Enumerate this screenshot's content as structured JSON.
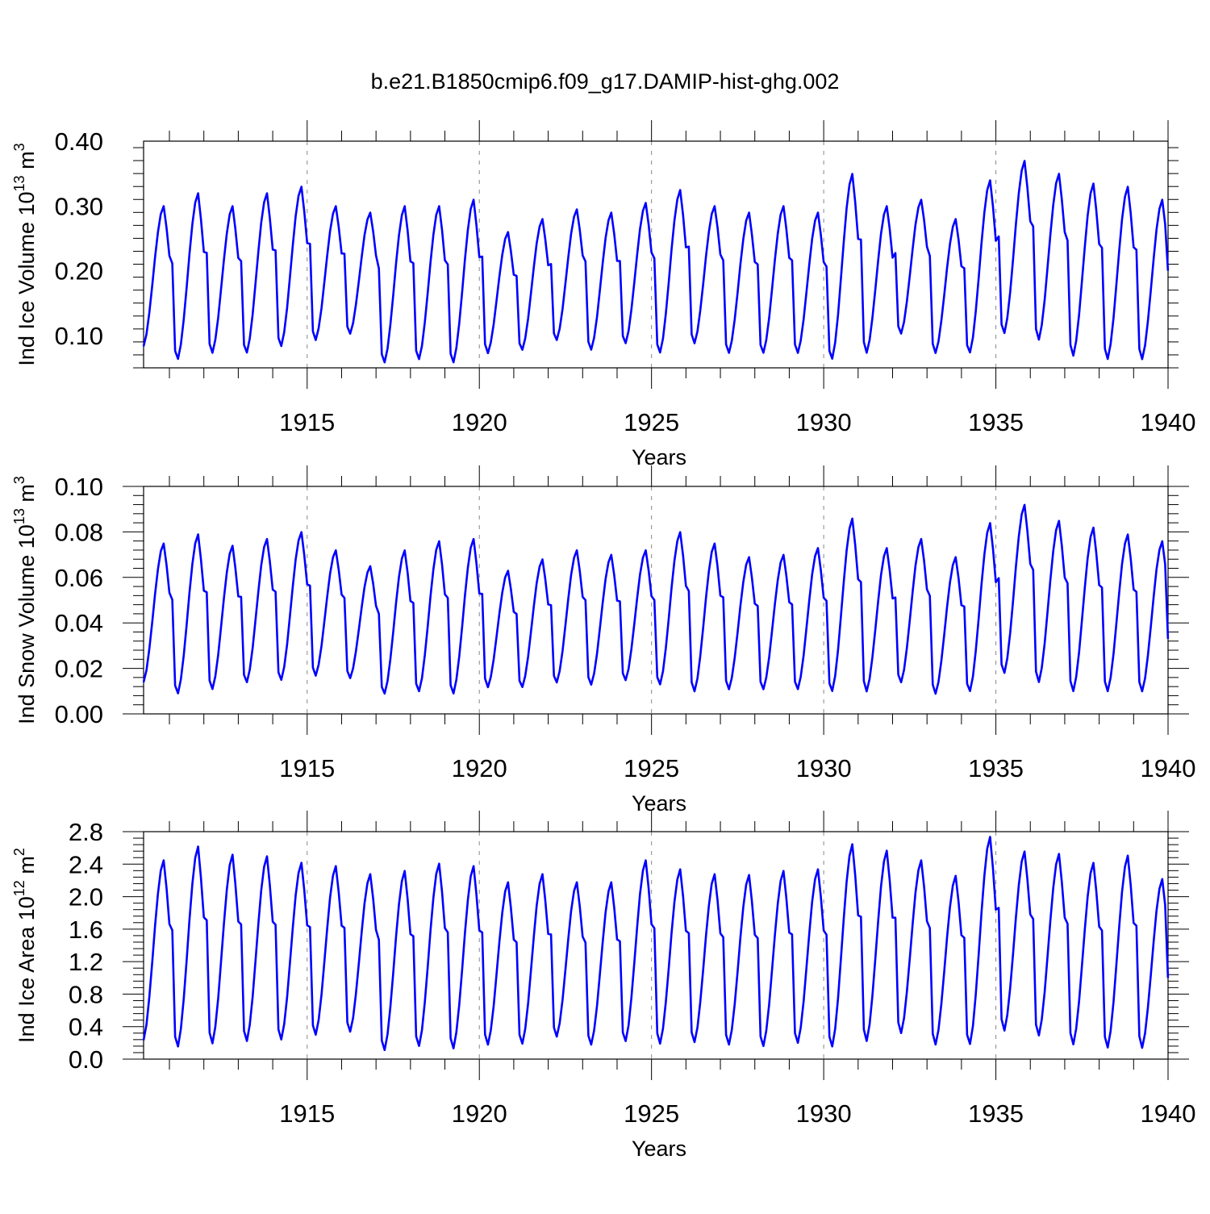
{
  "title": "b.e21.B1850cmip6.f09_g17.DAMIP-hist-ghg.002",
  "line_color": "#0000ff",
  "chart_data": [
    {
      "type": "line",
      "id": "ice-volume",
      "ylabel_main": "Ind Ice Volume 10",
      "ylabel_exp": "13",
      "ylabel_unit": " m",
      "ylabel_unit_exp": "3",
      "xlabel": "Years",
      "xlim": [
        1910.25,
        1940.0
      ],
      "ylim": [
        0.05,
        0.4
      ],
      "yticks": [
        0.1,
        0.2,
        0.3,
        0.4
      ],
      "ytick_labels": [
        "0.10",
        "0.20",
        "0.30",
        "0.40"
      ],
      "xticks": [
        1915,
        1920,
        1925,
        1930,
        1935,
        1940
      ],
      "xtick_labels": [
        "1915",
        "1920",
        "1925",
        "1930",
        "1935",
        "1940"
      ],
      "series": [
        {
          "name": "Ind Ice Volume",
          "start": 1910.25,
          "step": 0.08333,
          "min_values": [
            0.08,
            0.06,
            0.07,
            0.07,
            0.08,
            0.09,
            0.1,
            0.055,
            0.06,
            0.055,
            0.07,
            0.075,
            0.09,
            0.075,
            0.085,
            0.07,
            0.085,
            0.07,
            0.07,
            0.07,
            0.06,
            0.07,
            0.1,
            0.07,
            0.07,
            0.1,
            0.09,
            0.065,
            0.06
          ],
          "max_values": [
            0.3,
            0.32,
            0.3,
            0.32,
            0.33,
            0.3,
            0.29,
            0.3,
            0.3,
            0.31,
            0.26,
            0.28,
            0.295,
            0.29,
            0.305,
            0.325,
            0.3,
            0.29,
            0.3,
            0.29,
            0.35,
            0.3,
            0.31,
            0.28,
            0.34,
            0.37,
            0.35,
            0.335,
            0.33
          ],
          "last_max": 0.31,
          "end_value": 0.2
        }
      ]
    },
    {
      "type": "line",
      "id": "snow-volume",
      "ylabel_main": "Ind Snow Volume 10",
      "ylabel_exp": "13",
      "ylabel_unit": " m",
      "ylabel_unit_exp": "3",
      "xlabel": "Years",
      "xlim": [
        1910.25,
        1940.0
      ],
      "ylim": [
        0.0,
        0.1
      ],
      "yticks": [
        0.0,
        0.02,
        0.04,
        0.06,
        0.08,
        0.1
      ],
      "ytick_labels": [
        "0.00",
        "0.02",
        "0.04",
        "0.06",
        "0.08",
        "0.10"
      ],
      "xticks": [
        1915,
        1920,
        1925,
        1930,
        1935,
        1940
      ],
      "xtick_labels": [
        "1915",
        "1920",
        "1925",
        "1930",
        "1935",
        "1940"
      ],
      "series": [
        {
          "name": "Ind Snow Volume",
          "start": 1910.25,
          "step": 0.08333,
          "min_values": [
            0.013,
            0.008,
            0.01,
            0.013,
            0.014,
            0.016,
            0.015,
            0.008,
            0.009,
            0.008,
            0.011,
            0.011,
            0.013,
            0.012,
            0.014,
            0.012,
            0.009,
            0.01,
            0.01,
            0.01,
            0.009,
            0.009,
            0.013,
            0.008,
            0.009,
            0.017,
            0.013,
            0.009,
            0.009
          ],
          "max_values": [
            0.075,
            0.079,
            0.074,
            0.077,
            0.08,
            0.072,
            0.065,
            0.072,
            0.076,
            0.077,
            0.063,
            0.068,
            0.072,
            0.07,
            0.072,
            0.08,
            0.075,
            0.069,
            0.07,
            0.073,
            0.086,
            0.073,
            0.077,
            0.069,
            0.084,
            0.092,
            0.085,
            0.082,
            0.079
          ],
          "last_max": 0.076,
          "end_value": 0.033
        }
      ]
    },
    {
      "type": "line",
      "id": "ice-area",
      "ylabel_main": "Ind Ice Area 10",
      "ylabel_exp": "12",
      "ylabel_unit": " m",
      "ylabel_unit_exp": "2",
      "xlabel": "Years",
      "xlim": [
        1910.25,
        1940.0
      ],
      "ylim": [
        0.0,
        2.8
      ],
      "yticks": [
        0.0,
        0.4,
        0.8,
        1.2,
        1.6,
        2.0,
        2.4,
        2.8
      ],
      "ytick_labels": [
        "0.0",
        "0.4",
        "0.8",
        "1.2",
        "1.6",
        "2.0",
        "2.4",
        "2.8"
      ],
      "xticks": [
        1915,
        1920,
        1925,
        1930,
        1935,
        1940
      ],
      "xtick_labels": [
        "1915",
        "1920",
        "1925",
        "1930",
        "1935",
        "1940"
      ],
      "series": [
        {
          "name": "Ind Ice Area",
          "start": 1910.25,
          "step": 0.08333,
          "min_values": [
            0.2,
            0.12,
            0.16,
            0.19,
            0.21,
            0.27,
            0.31,
            0.08,
            0.13,
            0.1,
            0.15,
            0.16,
            0.25,
            0.15,
            0.19,
            0.16,
            0.18,
            0.15,
            0.13,
            0.17,
            0.12,
            0.19,
            0.29,
            0.15,
            0.15,
            0.32,
            0.26,
            0.15,
            0.11
          ],
          "max_values": [
            2.45,
            2.62,
            2.52,
            2.5,
            2.42,
            2.38,
            2.28,
            2.32,
            2.41,
            2.38,
            2.18,
            2.28,
            2.18,
            2.18,
            2.45,
            2.34,
            2.28,
            2.27,
            2.32,
            2.34,
            2.65,
            2.57,
            2.45,
            2.26,
            2.74,
            2.56,
            2.53,
            2.42,
            2.51
          ],
          "last_max": 2.22,
          "end_value": 1.0
        }
      ]
    }
  ]
}
